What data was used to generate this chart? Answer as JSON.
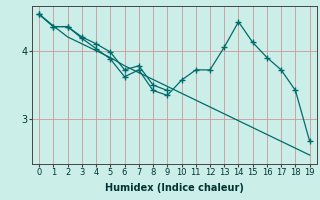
{
  "xlabel": "Humidex (Indice chaleur)",
  "bg_color": "#cceee8",
  "line_color": "#006b6b",
  "grid_color": "#cc9999",
  "x": [
    0,
    1,
    2,
    3,
    4,
    5,
    6,
    7,
    8,
    9,
    10,
    11,
    12,
    13,
    14,
    15,
    16,
    17,
    18,
    19
  ],
  "line_jagged": [
    4.53,
    4.35,
    4.35,
    4.18,
    4.03,
    3.88,
    3.62,
    3.72,
    3.42,
    3.35,
    3.57,
    3.72,
    3.72,
    4.05,
    4.42,
    4.12,
    3.9,
    3.72,
    3.42,
    2.68
  ],
  "line_straight": [
    4.53,
    4.36,
    4.2,
    4.1,
    4.0,
    3.9,
    3.78,
    3.68,
    3.58,
    3.48,
    3.38,
    3.28,
    3.18,
    3.08,
    2.98,
    2.88,
    2.78,
    2.68,
    2.58,
    2.48
  ],
  "line_smooth": [
    4.53,
    4.35,
    4.35,
    4.2,
    4.1,
    3.98,
    3.72,
    3.78,
    3.5,
    3.42,
    3.57,
    3.72,
    3.72,
    4.05,
    4.42,
    4.12,
    3.9,
    3.72,
    3.42,
    2.68
  ],
  "ylim_min": 2.35,
  "ylim_max": 4.65,
  "yticks": [
    3.0,
    4.0
  ],
  "xlim_min": -0.5,
  "xlim_max": 19.5
}
